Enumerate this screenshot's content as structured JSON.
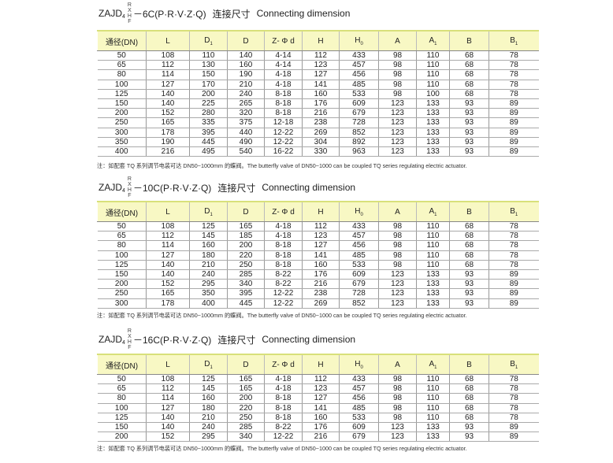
{
  "headers": [
    "通径(DN)",
    "L",
    "D1",
    "D",
    "Z- Φ d",
    "H",
    "H0",
    "A",
    "A1",
    "B",
    "B1"
  ],
  "note": "注：如配套 TQ 系列调节电装可达 DN50~1000mm 的蝶阀。The butterfly valve of DN50~1000 can be coupled TQ series regulating electric actuator.",
  "sections": [
    {
      "title_prefix": "ZAJD",
      "title_sub": "4",
      "title_stack": [
        "R",
        "X",
        "H",
        "F"
      ],
      "title_suffix": "－6C(P·R·V·Z·Q)",
      "title_cn": "连接尺寸",
      "title_en": "Connecting dimension",
      "rows": [
        [
          "50",
          "108",
          "110",
          "140",
          "4-14",
          "112",
          "433",
          "98",
          "110",
          "68",
          "78"
        ],
        [
          "65",
          "112",
          "130",
          "160",
          "4-14",
          "123",
          "457",
          "98",
          "110",
          "68",
          "78"
        ],
        [
          "80",
          "114",
          "150",
          "190",
          "4-18",
          "127",
          "456",
          "98",
          "110",
          "68",
          "78"
        ],
        [
          "100",
          "127",
          "170",
          "210",
          "4-18",
          "141",
          "485",
          "98",
          "110",
          "68",
          "78"
        ],
        [
          "125",
          "140",
          "200",
          "240",
          "8-18",
          "160",
          "533",
          "98",
          "100",
          "68",
          "78"
        ],
        [
          "150",
          "140",
          "225",
          "265",
          "8-18",
          "176",
          "609",
          "123",
          "133",
          "93",
          "89"
        ],
        [
          "200",
          "152",
          "280",
          "320",
          "8-18",
          "216",
          "679",
          "123",
          "133",
          "93",
          "89"
        ],
        [
          "250",
          "165",
          "335",
          "375",
          "12-18",
          "238",
          "728",
          "123",
          "133",
          "93",
          "89"
        ],
        [
          "300",
          "178",
          "395",
          "440",
          "12-22",
          "269",
          "852",
          "123",
          "133",
          "93",
          "89"
        ],
        [
          "350",
          "190",
          "445",
          "490",
          "12-22",
          "304",
          "892",
          "123",
          "133",
          "93",
          "89"
        ],
        [
          "400",
          "216",
          "495",
          "540",
          "16-22",
          "330",
          "963",
          "123",
          "133",
          "93",
          "89"
        ]
      ]
    },
    {
      "title_prefix": "ZAJD",
      "title_sub": "4",
      "title_stack": [
        "R",
        "X",
        "H",
        "F"
      ],
      "title_suffix": "－10C(P·R·V·Z·Q)",
      "title_cn": "连接尺寸",
      "title_en": "Connecting dimension",
      "rows": [
        [
          "50",
          "108",
          "125",
          "165",
          "4-18",
          "112",
          "433",
          "98",
          "110",
          "68",
          "78"
        ],
        [
          "65",
          "112",
          "145",
          "185",
          "4-18",
          "123",
          "457",
          "98",
          "110",
          "68",
          "78"
        ],
        [
          "80",
          "114",
          "160",
          "200",
          "8-18",
          "127",
          "456",
          "98",
          "110",
          "68",
          "78"
        ],
        [
          "100",
          "127",
          "180",
          "220",
          "8-18",
          "141",
          "485",
          "98",
          "110",
          "68",
          "78"
        ],
        [
          "125",
          "140",
          "210",
          "250",
          "8-18",
          "160",
          "533",
          "98",
          "110",
          "68",
          "78"
        ],
        [
          "150",
          "140",
          "240",
          "285",
          "8-22",
          "176",
          "609",
          "123",
          "133",
          "93",
          "89"
        ],
        [
          "200",
          "152",
          "295",
          "340",
          "8-22",
          "216",
          "679",
          "123",
          "133",
          "93",
          "89"
        ],
        [
          "250",
          "165",
          "350",
          "395",
          "12-22",
          "238",
          "728",
          "123",
          "133",
          "93",
          "89"
        ],
        [
          "300",
          "178",
          "400",
          "445",
          "12-22",
          "269",
          "852",
          "123",
          "133",
          "93",
          "89"
        ]
      ]
    },
    {
      "title_prefix": "ZAJD",
      "title_sub": "4",
      "title_stack": [
        "R",
        "X",
        "H",
        "F"
      ],
      "title_suffix": "－16C(P·R·V·Z·Q)",
      "title_cn": "连接尺寸",
      "title_en": "Connecting dimension",
      "rows": [
        [
          "50",
          "108",
          "125",
          "165",
          "4-18",
          "112",
          "433",
          "98",
          "110",
          "68",
          "78"
        ],
        [
          "65",
          "112",
          "145",
          "165",
          "4-18",
          "123",
          "457",
          "98",
          "110",
          "68",
          "78"
        ],
        [
          "80",
          "114",
          "160",
          "200",
          "8-18",
          "127",
          "456",
          "98",
          "110",
          "68",
          "78"
        ],
        [
          "100",
          "127",
          "180",
          "220",
          "8-18",
          "141",
          "485",
          "98",
          "110",
          "68",
          "78"
        ],
        [
          "125",
          "140",
          "210",
          "250",
          "8-18",
          "160",
          "533",
          "98",
          "110",
          "68",
          "78"
        ],
        [
          "150",
          "140",
          "240",
          "285",
          "8-22",
          "176",
          "609",
          "123",
          "133",
          "93",
          "89"
        ],
        [
          "200",
          "152",
          "295",
          "340",
          "12-22",
          "216",
          "679",
          "123",
          "133",
          "93",
          "89"
        ]
      ]
    }
  ]
}
